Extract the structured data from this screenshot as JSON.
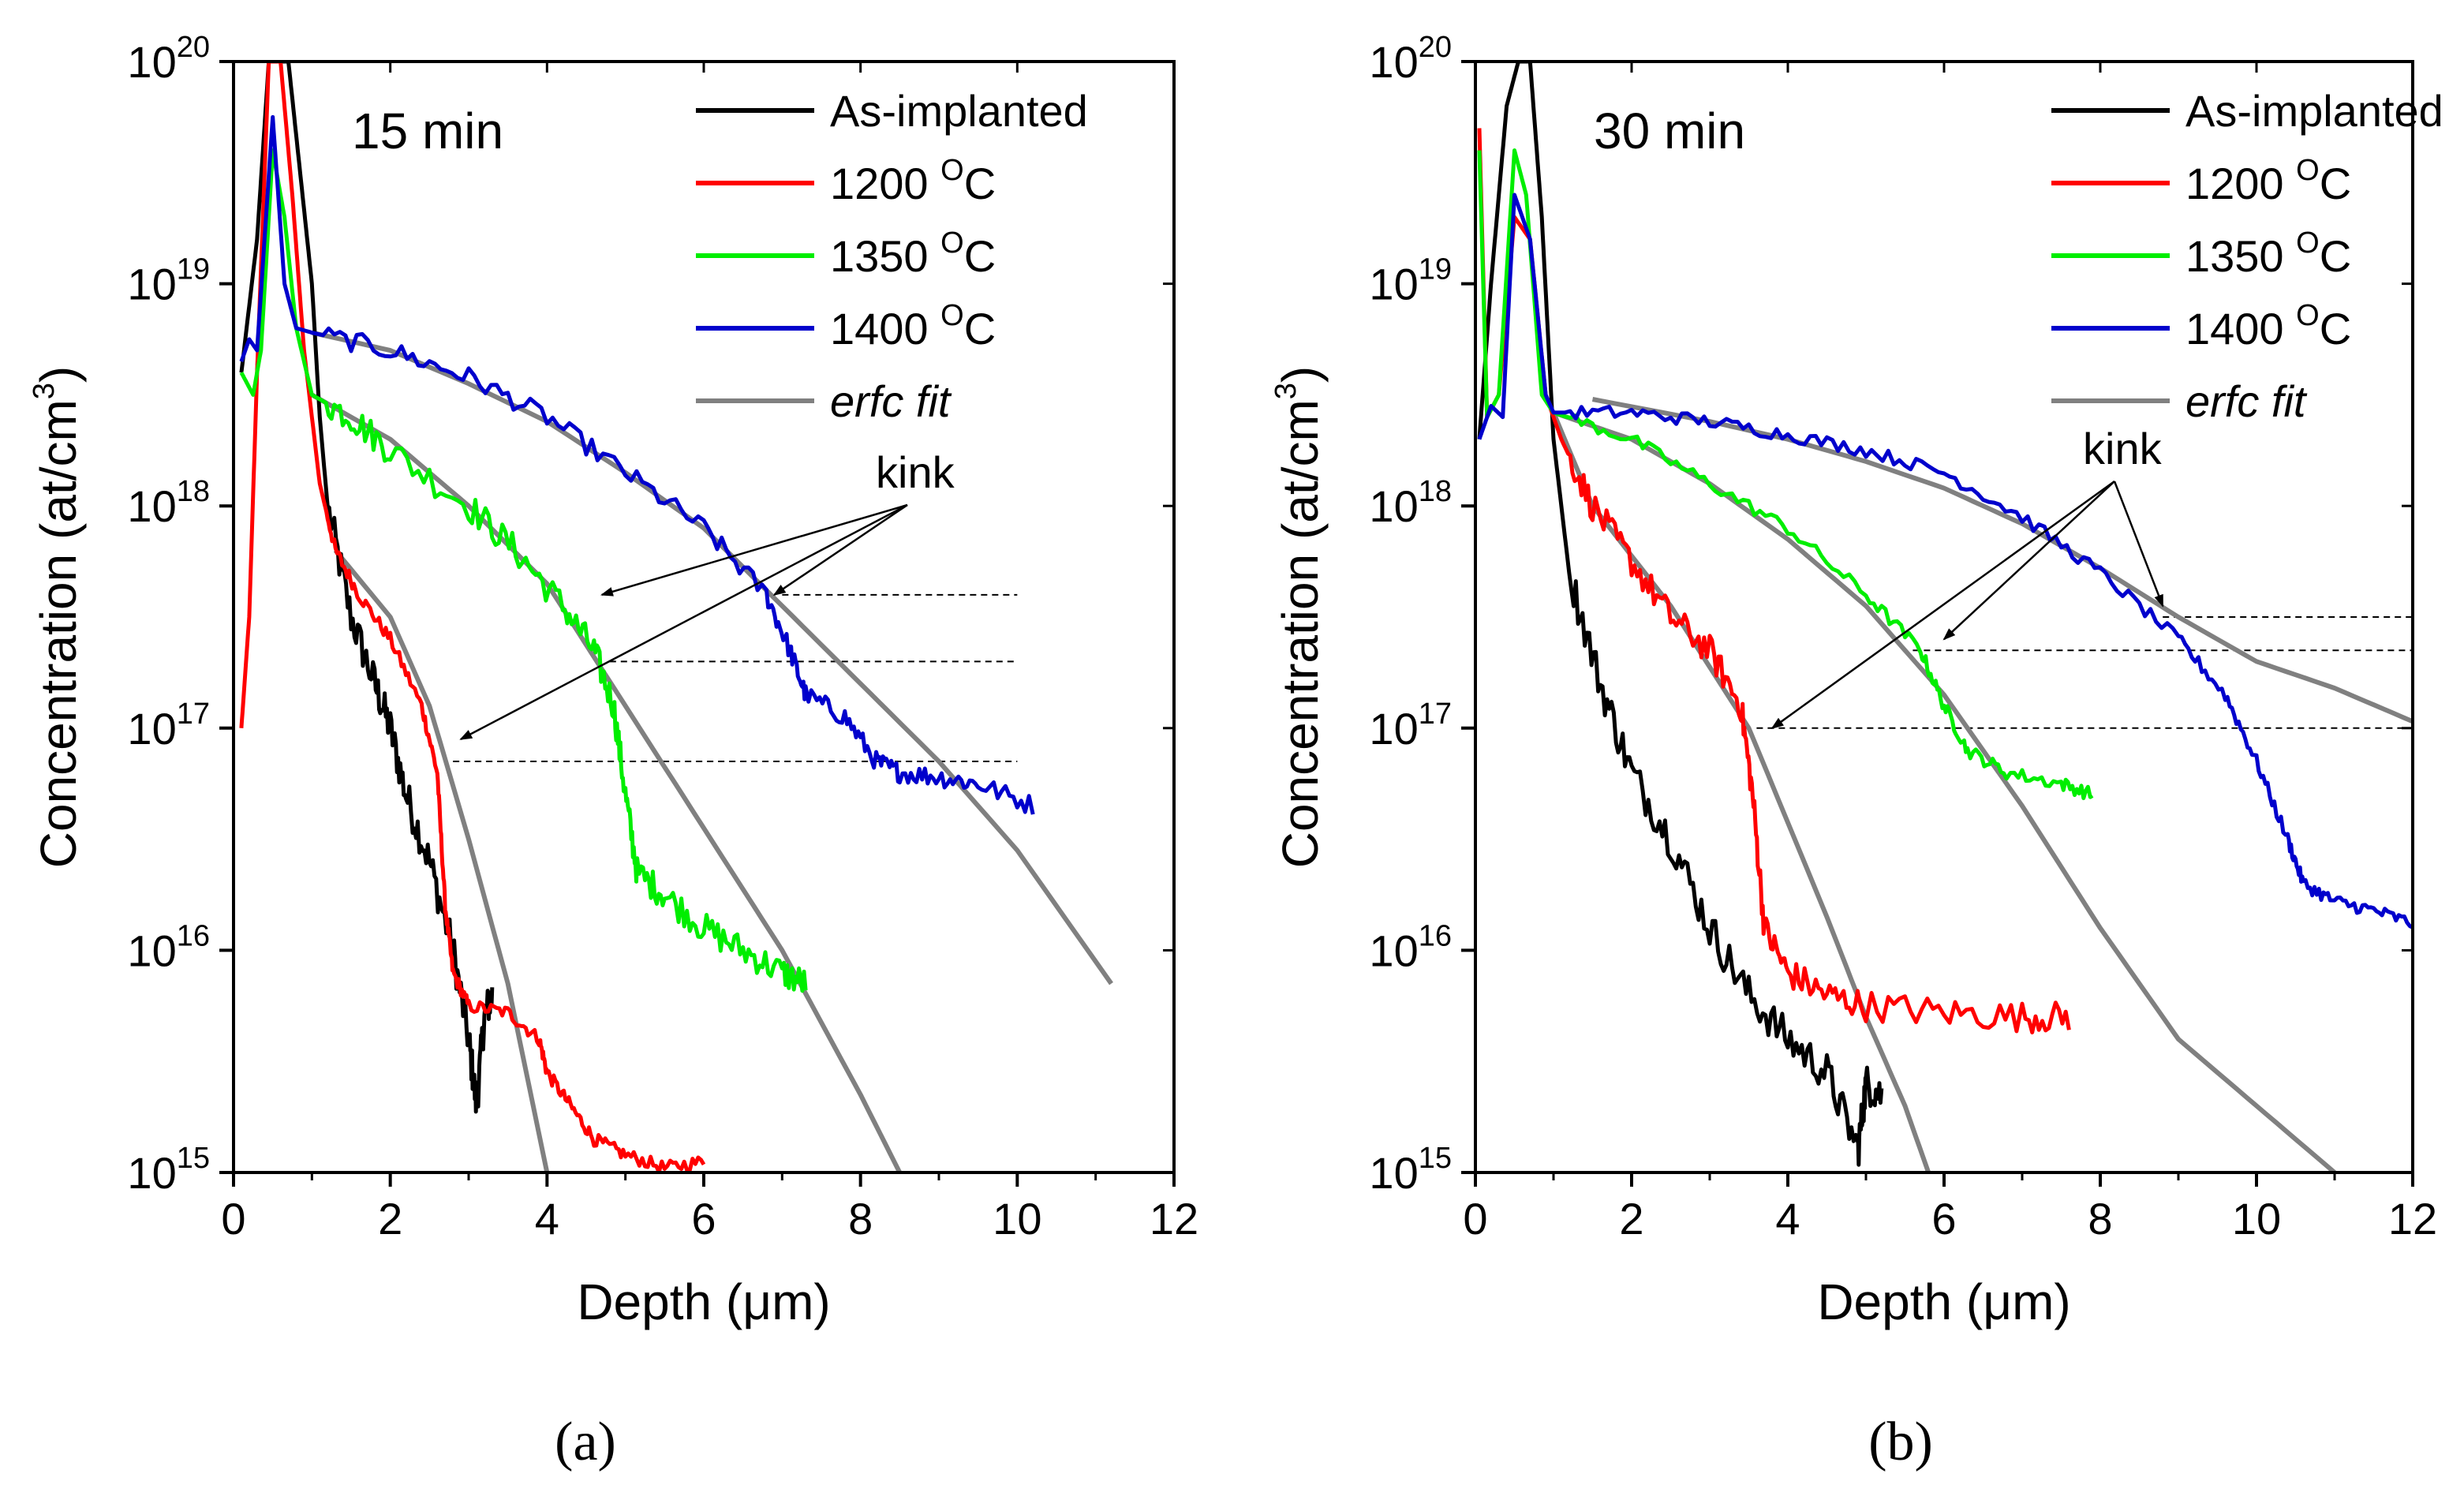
{
  "figure": {
    "captions": [
      "(a)",
      "(b)"
    ]
  },
  "chart_data": [
    {
      "type": "line",
      "panel": "a",
      "panel_label": "15 min",
      "caption_letter": "a",
      "xlabel": "Depth (μm)",
      "ylabel": "Concentration (at/cm³)",
      "ylabel_main": "Concentration (at/cm",
      "ylabel_exp": "3",
      "ylabel_close": ")",
      "xlim": [
        0,
        12
      ],
      "ylim_log10": [
        15,
        20
      ],
      "xticks": [
        0,
        2,
        4,
        6,
        8,
        10,
        12
      ],
      "yticks_exp": [
        15,
        16,
        17,
        18,
        19,
        20
      ],
      "ytick_base": "10",
      "legend": [
        {
          "label": "As-implanted",
          "color": "#000000"
        },
        {
          "label": "1200 ",
          "sup": "O",
          "suffix": "C",
          "color": "#ff0000"
        },
        {
          "label": "1350 ",
          "sup": "O",
          "suffix": "C",
          "color": "#00ee00"
        },
        {
          "label": "1400 ",
          "sup": "O",
          "suffix": "C",
          "color": "#0000cc"
        },
        {
          "label": "erfc fit",
          "color": "#808080",
          "italic": true
        }
      ],
      "annotation": "kink",
      "kink_levels_log10": [
        17.6,
        17.3,
        16.85
      ],
      "series": [
        {
          "name": "As-implanted",
          "color": "#000000",
          "noise": 0.09,
          "points": [
            [
              0.1,
              18.6
            ],
            [
              0.3,
              19.2
            ],
            [
              0.45,
              20
            ],
            [
              0.7,
              20
            ],
            [
              0.85,
              19.5
            ],
            [
              1.0,
              19.0
            ],
            [
              1.1,
              18.4
            ],
            [
              1.2,
              18.0
            ],
            [
              1.5,
              17.5
            ],
            [
              1.8,
              17.2
            ],
            [
              2.0,
              17.0
            ],
            [
              2.2,
              16.7
            ],
            [
              2.5,
              16.4
            ],
            [
              2.8,
              16.0
            ],
            [
              3.0,
              15.6
            ],
            [
              3.1,
              15.3
            ],
            [
              3.2,
              15.7
            ],
            [
              3.3,
              15.8
            ]
          ]
        },
        {
          "name": "1200 °C",
          "color": "#ff0000",
          "noise": 0.03,
          "points": [
            [
              0.1,
              17.0
            ],
            [
              0.2,
              17.5
            ],
            [
              0.3,
              18.6
            ],
            [
              0.45,
              20
            ],
            [
              0.6,
              20
            ],
            [
              0.75,
              19.4
            ],
            [
              0.9,
              18.7
            ],
            [
              1.1,
              18.1
            ],
            [
              1.3,
              17.8
            ],
            [
              1.6,
              17.6
            ],
            [
              2.0,
              17.4
            ],
            [
              2.4,
              17.1
            ],
            [
              2.6,
              16.8
            ],
            [
              2.7,
              16.2
            ],
            [
              2.8,
              15.9
            ],
            [
              3.0,
              15.75
            ],
            [
              3.5,
              15.72
            ],
            [
              3.9,
              15.6
            ],
            [
              4.0,
              15.45
            ],
            [
              4.3,
              15.3
            ],
            [
              4.6,
              15.15
            ],
            [
              5.0,
              15.08
            ],
            [
              5.5,
              15.02
            ],
            [
              6.0,
              15.05
            ]
          ]
        },
        {
          "name": "1350 °C",
          "color": "#00ee00",
          "noise": 0.07,
          "points": [
            [
              0.1,
              18.6
            ],
            [
              0.25,
              18.5
            ],
            [
              0.35,
              18.7
            ],
            [
              0.5,
              19.6
            ],
            [
              0.65,
              19.3
            ],
            [
              0.8,
              18.8
            ],
            [
              1.0,
              18.5
            ],
            [
              1.5,
              18.4
            ],
            [
              2.0,
              18.25
            ],
            [
              3.0,
              18.0
            ],
            [
              3.6,
              17.8
            ],
            [
              4.2,
              17.55
            ],
            [
              4.6,
              17.35
            ],
            [
              4.85,
              17.1
            ],
            [
              5.0,
              16.7
            ],
            [
              5.15,
              16.35
            ],
            [
              5.5,
              16.25
            ],
            [
              6.0,
              16.1
            ],
            [
              6.5,
              16.0
            ],
            [
              7.0,
              15.9
            ],
            [
              7.3,
              15.85
            ]
          ]
        },
        {
          "name": "1400 °C",
          "color": "#0000cc",
          "noise": 0.045,
          "points": [
            [
              0.1,
              18.65
            ],
            [
              0.2,
              18.75
            ],
            [
              0.3,
              18.7
            ],
            [
              0.5,
              19.75
            ],
            [
              0.65,
              19.0
            ],
            [
              0.8,
              18.8
            ],
            [
              1.0,
              18.78
            ],
            [
              2.0,
              18.7
            ],
            [
              3.0,
              18.58
            ],
            [
              4.0,
              18.4
            ],
            [
              5.0,
              18.15
            ],
            [
              6.0,
              17.9
            ],
            [
              6.8,
              17.6
            ],
            [
              7.1,
              17.35
            ],
            [
              7.3,
              17.15
            ],
            [
              7.8,
              17.05
            ],
            [
              8.2,
              16.85
            ],
            [
              8.5,
              16.8
            ],
            [
              9.0,
              16.78
            ],
            [
              9.5,
              16.75
            ],
            [
              10.2,
              16.65
            ]
          ]
        },
        {
          "name": "erfc fit 1200",
          "color": "#808080",
          "noise": 0,
          "points": [
            [
              1.3,
              17.8
            ],
            [
              2.0,
              17.5
            ],
            [
              2.5,
              17.1
            ],
            [
              3.0,
              16.5
            ],
            [
              3.5,
              15.85
            ],
            [
              4.0,
              15.0
            ]
          ]
        },
        {
          "name": "erfc fit 1350",
          "color": "#808080",
          "noise": 0,
          "points": [
            [
              1.0,
              18.5
            ],
            [
              2.0,
              18.3
            ],
            [
              3.0,
              18.0
            ],
            [
              4.0,
              17.65
            ],
            [
              5.0,
              17.1
            ],
            [
              6.0,
              16.55
            ],
            [
              7.0,
              16.0
            ],
            [
              8.0,
              15.35
            ],
            [
              8.5,
              15.0
            ]
          ]
        },
        {
          "name": "erfc fit 1400",
          "color": "#808080",
          "noise": 0,
          "points": [
            [
              1.0,
              18.78
            ],
            [
              2.0,
              18.7
            ],
            [
              3.0,
              18.55
            ],
            [
              4.0,
              18.38
            ],
            [
              5.0,
              18.15
            ],
            [
              6.0,
              17.9
            ],
            [
              7.0,
              17.55
            ],
            [
              8.0,
              17.2
            ],
            [
              9.0,
              16.85
            ],
            [
              10.0,
              16.45
            ],
            [
              11.2,
              15.85
            ]
          ]
        }
      ]
    },
    {
      "type": "line",
      "panel": "b",
      "panel_label": "30 min",
      "caption_letter": "b",
      "xlabel": "Depth (μm)",
      "ylabel": "Concentration (at/cm³)",
      "ylabel_main": "Concentration (at/cm",
      "ylabel_exp": "3",
      "ylabel_close": ")",
      "xlim": [
        0,
        12
      ],
      "ylim_log10": [
        15,
        20
      ],
      "xticks": [
        0,
        2,
        4,
        6,
        8,
        10,
        12
      ],
      "yticks_exp": [
        15,
        16,
        17,
        18,
        19,
        20
      ],
      "ytick_base": "10",
      "legend": [
        {
          "label": "As-implanted",
          "color": "#000000"
        },
        {
          "label": "1200 ",
          "sup": "O",
          "suffix": "C",
          "color": "#ff0000"
        },
        {
          "label": "1350 ",
          "sup": "O",
          "suffix": "C",
          "color": "#00ee00"
        },
        {
          "label": "1400 ",
          "sup": "O",
          "suffix": "C",
          "color": "#0000cc"
        },
        {
          "label": "erfc fit",
          "color": "#808080",
          "italic": true
        }
      ],
      "annotation": "kink",
      "kink_levels_log10": [
        17.5,
        17.35,
        17.0
      ],
      "series": [
        {
          "name": "As-implanted",
          "color": "#000000",
          "noise": 0.09,
          "points": [
            [
              0.05,
              18.3
            ],
            [
              0.2,
              19.0
            ],
            [
              0.4,
              19.8
            ],
            [
              0.55,
              20
            ],
            [
              0.7,
              20
            ],
            [
              0.85,
              19.3
            ],
            [
              1.0,
              18.3
            ],
            [
              1.2,
              17.7
            ],
            [
              1.6,
              17.2
            ],
            [
              2.0,
              16.8
            ],
            [
              2.5,
              16.5
            ],
            [
              3.0,
              16.1
            ],
            [
              3.5,
              15.8
            ],
            [
              4.0,
              15.6
            ],
            [
              4.5,
              15.45
            ],
            [
              4.9,
              15.1
            ],
            [
              5.0,
              15.4
            ],
            [
              5.2,
              15.35
            ]
          ]
        },
        {
          "name": "1200 °C",
          "color": "#ff0000",
          "noise": 0.07,
          "points": [
            [
              0.05,
              19.7
            ],
            [
              0.15,
              18.4
            ],
            [
              0.3,
              18.5
            ],
            [
              0.5,
              19.3
            ],
            [
              0.7,
              19.2
            ],
            [
              0.9,
              18.5
            ],
            [
              1.1,
              18.3
            ],
            [
              1.5,
              18.0
            ],
            [
              2.0,
              17.75
            ],
            [
              2.5,
              17.5
            ],
            [
              3.0,
              17.35
            ],
            [
              3.4,
              17.1
            ],
            [
              3.55,
              16.7
            ],
            [
              3.7,
              16.1
            ],
            [
              4.0,
              15.9
            ],
            [
              4.5,
              15.8
            ],
            [
              5.0,
              15.75
            ],
            [
              6.0,
              15.72
            ],
            [
              7.0,
              15.7
            ],
            [
              7.6,
              15.7
            ]
          ]
        },
        {
          "name": "1350 °C",
          "color": "#00ee00",
          "noise": 0.03,
          "points": [
            [
              0.05,
              19.6
            ],
            [
              0.15,
              18.4
            ],
            [
              0.3,
              18.5
            ],
            [
              0.5,
              19.6
            ],
            [
              0.65,
              19.4
            ],
            [
              0.85,
              18.5
            ],
            [
              1.0,
              18.42
            ],
            [
              2.0,
              18.3
            ],
            [
              3.0,
              18.1
            ],
            [
              4.0,
              17.9
            ],
            [
              5.0,
              17.6
            ],
            [
              5.7,
              17.35
            ],
            [
              6.0,
              17.1
            ],
            [
              6.3,
              16.9
            ],
            [
              6.8,
              16.8
            ],
            [
              7.5,
              16.75
            ],
            [
              7.9,
              16.7
            ]
          ]
        },
        {
          "name": "1400 °C",
          "color": "#0000cc",
          "noise": 0.03,
          "points": [
            [
              0.05,
              18.3
            ],
            [
              0.2,
              18.45
            ],
            [
              0.35,
              18.4
            ],
            [
              0.5,
              19.4
            ],
            [
              0.7,
              19.2
            ],
            [
              0.9,
              18.5
            ],
            [
              1.0,
              18.42
            ],
            [
              2.0,
              18.42
            ],
            [
              3.0,
              18.38
            ],
            [
              4.0,
              18.32
            ],
            [
              5.0,
              18.25
            ],
            [
              6.0,
              18.15
            ],
            [
              7.0,
              17.95
            ],
            [
              8.0,
              17.7
            ],
            [
              9.0,
              17.4
            ],
            [
              9.6,
              17.15
            ],
            [
              10.0,
              16.85
            ],
            [
              10.4,
              16.5
            ],
            [
              10.6,
              16.3
            ],
            [
              11.0,
              16.22
            ],
            [
              11.5,
              16.18
            ],
            [
              12.0,
              16.12
            ]
          ]
        },
        {
          "name": "erfc fit 1200",
          "color": "#808080",
          "noise": 0,
          "points": [
            [
              1.0,
              18.42
            ],
            [
              1.5,
              18.0
            ],
            [
              2.5,
              17.55
            ],
            [
              3.5,
              17.0
            ],
            [
              4.5,
              16.15
            ],
            [
              5.0,
              15.7
            ],
            [
              5.5,
              15.3
            ],
            [
              5.8,
              15.0
            ]
          ]
        },
        {
          "name": "erfc fit 1350",
          "color": "#808080",
          "noise": 0,
          "points": [
            [
              1.0,
              18.42
            ],
            [
              2.0,
              18.3
            ],
            [
              3.0,
              18.1
            ],
            [
              4.0,
              17.85
            ],
            [
              5.0,
              17.55
            ],
            [
              6.0,
              17.15
            ],
            [
              7.0,
              16.65
            ],
            [
              8.0,
              16.1
            ],
            [
              9.0,
              15.6
            ],
            [
              10.0,
              15.3
            ],
            [
              11.0,
              15.0
            ]
          ]
        },
        {
          "name": "erfc fit 1400",
          "color": "#808080",
          "noise": 0,
          "points": [
            [
              1.5,
              18.48
            ],
            [
              3.0,
              18.38
            ],
            [
              4.0,
              18.3
            ],
            [
              5.0,
              18.2
            ],
            [
              6.0,
              18.08
            ],
            [
              7.0,
              17.92
            ],
            [
              8.0,
              17.72
            ],
            [
              9.0,
              17.5
            ],
            [
              10.0,
              17.3
            ],
            [
              11.0,
              17.18
            ],
            [
              12.0,
              17.03
            ]
          ]
        }
      ]
    }
  ]
}
